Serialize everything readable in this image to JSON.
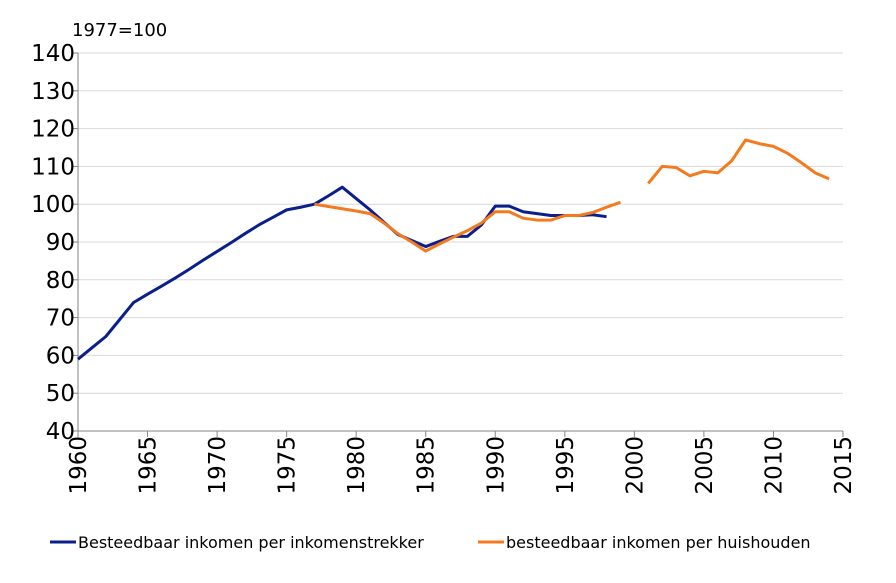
{
  "chart_data": {
    "type": "line",
    "annotation": "1977=100",
    "x": [
      1960,
      1961,
      1962,
      1963,
      1964,
      1965,
      1966,
      1967,
      1968,
      1969,
      1970,
      1971,
      1972,
      1973,
      1974,
      1975,
      1976,
      1977,
      1978,
      1979,
      1980,
      1981,
      1982,
      1983,
      1984,
      1985,
      1986,
      1987,
      1988,
      1989,
      1990,
      1991,
      1992,
      1993,
      1994,
      1995,
      1996,
      1997,
      1998,
      1999,
      2000,
      2001,
      2002,
      2003,
      2004,
      2005,
      2006,
      2007,
      2008,
      2009,
      2010,
      2011,
      2012,
      2013,
      2014
    ],
    "series": [
      {
        "name": "Besteedbaar inkomen per inkomenstrekker",
        "color": "#0b1f8a",
        "values": [
          59,
          62,
          65,
          69.5,
          74,
          76.2,
          78.3,
          80.5,
          82.8,
          85.2,
          87.5,
          89.8,
          92.2,
          94.5,
          96.5,
          98.5,
          99.2,
          100,
          102.2,
          104.5,
          101.5,
          98.5,
          95.2,
          92,
          90.4,
          88.8,
          90.2,
          91.5,
          91.5,
          94.5,
          99.5,
          99.5,
          98,
          97.5,
          97,
          97,
          97,
          97.2,
          96.7,
          null,
          null,
          null,
          null,
          null,
          null,
          null,
          null,
          null,
          null,
          null,
          null,
          null,
          null,
          null,
          null
        ]
      },
      {
        "name": "besteedbaar inkomen per huishouden",
        "color": "#f47a20",
        "values": [
          null,
          null,
          null,
          null,
          null,
          null,
          null,
          null,
          null,
          null,
          null,
          null,
          null,
          null,
          null,
          null,
          null,
          100,
          99.4,
          98.8,
          98.2,
          97.5,
          95,
          92.2,
          90,
          87.6,
          89.5,
          91.3,
          93,
          95,
          98,
          98,
          96.3,
          95.8,
          95.8,
          97,
          97,
          97.8,
          99.2,
          100.5,
          null,
          105.5,
          110,
          109.7,
          107.5,
          108.7,
          108.3,
          111.5,
          117,
          116,
          115.3,
          113.5,
          111,
          108.3,
          106.7
        ]
      }
    ],
    "xlim": [
      1960,
      2015
    ],
    "xticks": [
      1960,
      1965,
      1970,
      1975,
      1980,
      1985,
      1990,
      1995,
      2000,
      2005,
      2010,
      2015
    ],
    "ylim": [
      40,
      140
    ],
    "yticks": [
      40,
      50,
      60,
      70,
      80,
      90,
      100,
      110,
      120,
      130,
      140
    ],
    "grid": true
  }
}
